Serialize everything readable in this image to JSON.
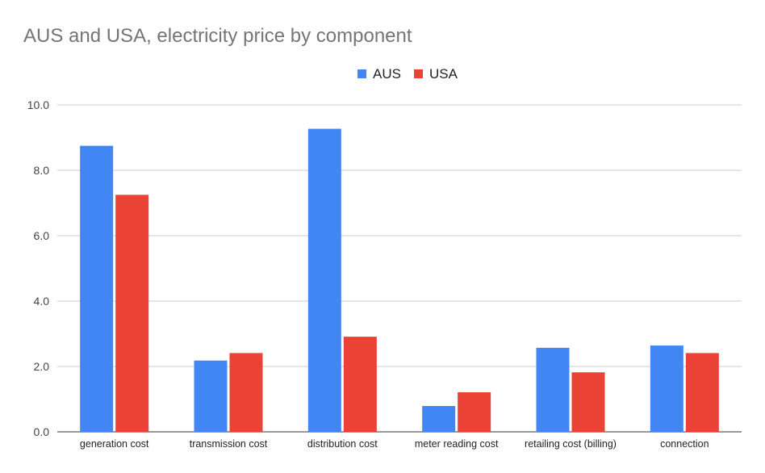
{
  "chart_data": {
    "type": "bar",
    "title": "AUS and USA, electricity price by component",
    "xlabel": "",
    "ylabel": "",
    "ylim": [
      0,
      10
    ],
    "yticks": [
      "0.0",
      "2.0",
      "4.0",
      "6.0",
      "8.0",
      "10.0"
    ],
    "grid": true,
    "legend_position": "top-center",
    "categories": [
      "generation cost",
      "transmission cost",
      "distribution cost",
      "meter reading cost",
      "retailing cost (billing)",
      "connection"
    ],
    "series": [
      {
        "name": "AUS",
        "color": "#4285f4",
        "values": [
          8.75,
          2.18,
          9.27,
          0.79,
          2.57,
          2.64
        ]
      },
      {
        "name": "USA",
        "color": "#ea4335",
        "values": [
          7.25,
          2.41,
          2.91,
          1.21,
          1.82,
          2.41
        ]
      }
    ]
  }
}
